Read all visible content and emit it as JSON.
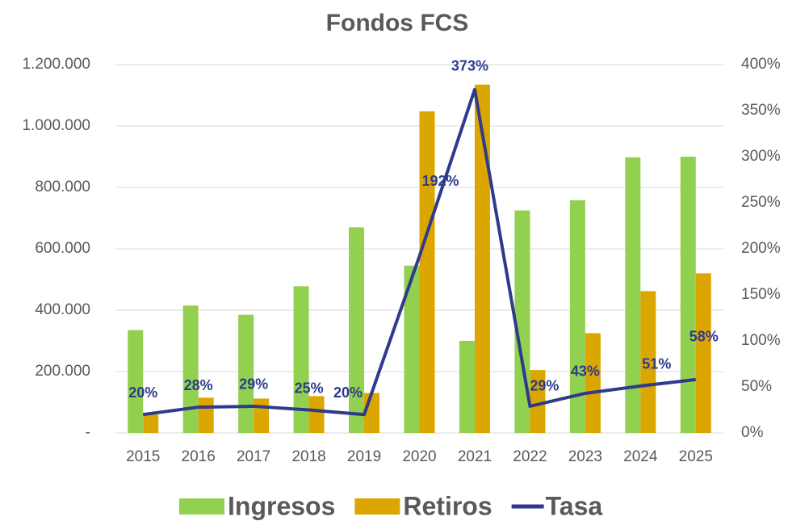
{
  "chart_data": {
    "type": "bar_line",
    "title": "Fondos FCS",
    "categories": [
      "2015",
      "2016",
      "2017",
      "2018",
      "2019",
      "2020",
      "2021",
      "2022",
      "2023",
      "2024",
      "2025"
    ],
    "series": [
      {
        "name": "Ingresos",
        "color": "#92d050",
        "type": "bar",
        "values": [
          335000,
          415000,
          385000,
          478000,
          670000,
          545000,
          300000,
          725000,
          758000,
          898000,
          900000
        ]
      },
      {
        "name": "Retiros",
        "color": "#dca600",
        "type": "bar",
        "values": [
          60000,
          115000,
          112000,
          120000,
          130000,
          1048000,
          1135000,
          205000,
          325000,
          462000,
          520000
        ]
      },
      {
        "name": "Tasa",
        "color": "#2e3a8c",
        "type": "line",
        "axis": "y2",
        "values": [
          20,
          28,
          29,
          25,
          20,
          192,
          373,
          29,
          43,
          51,
          58
        ],
        "value_labels": [
          "20%",
          "28%",
          "29%",
          "25%",
          "20%",
          "192%",
          "373%",
          "29%",
          "43%",
          "51%",
          "58%"
        ]
      }
    ],
    "ylim": [
      0,
      1200000
    ],
    "yticks": [
      {
        "value": 0,
        "label": "-"
      },
      {
        "value": 200000,
        "label": "200.000"
      },
      {
        "value": 400000,
        "label": "400.000"
      },
      {
        "value": 600000,
        "label": "600.000"
      },
      {
        "value": 800000,
        "label": "800.000"
      },
      {
        "value": 1000000,
        "label": "1.000.000"
      },
      {
        "value": 1200000,
        "label": "1.200.000"
      }
    ],
    "y2lim": [
      0,
      400
    ],
    "y2ticks": [
      {
        "value": 0,
        "label": "0%"
      },
      {
        "value": 50,
        "label": "50%"
      },
      {
        "value": 100,
        "label": "100%"
      },
      {
        "value": 150,
        "label": "150%"
      },
      {
        "value": 200,
        "label": "200%"
      },
      {
        "value": 250,
        "label": "250%"
      },
      {
        "value": 300,
        "label": "300%"
      },
      {
        "value": 350,
        "label": "350%"
      },
      {
        "value": 400,
        "label": "400%"
      }
    ],
    "grid": true,
    "legend": "bottom"
  }
}
